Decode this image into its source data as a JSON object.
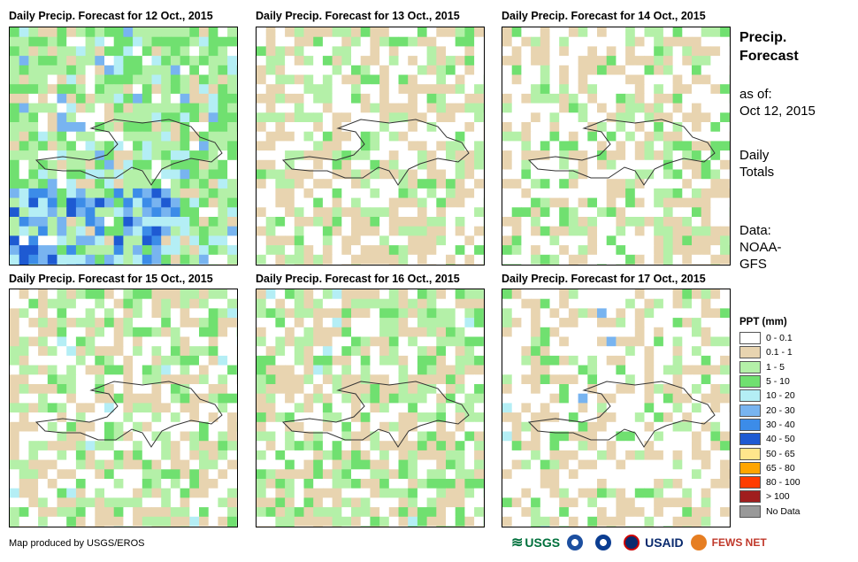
{
  "panels": [
    {
      "title": "Daily Precip. Forecast for 12 Oct., 2015"
    },
    {
      "title": "Daily Precip. Forecast for 13 Oct., 2015"
    },
    {
      "title": "Daily Precip. Forecast for 14 Oct., 2015"
    },
    {
      "title": "Daily Precip. Forecast for 15 Oct., 2015"
    },
    {
      "title": "Daily Precip. Forecast for 16 Oct., 2015"
    },
    {
      "title": "Daily Precip. Forecast for 17 Oct., 2015"
    }
  ],
  "side": {
    "title_line1": "Precip.",
    "title_line2": "Forecast",
    "asof_label": "as of:",
    "asof_date": "Oct 12, 2015",
    "totals_line1": "Daily",
    "totals_line2": "Totals",
    "data_label": "Data:",
    "data_line1": "NOAA-",
    "data_line2": "GFS"
  },
  "legend": {
    "title": "PPT (mm)",
    "items": [
      {
        "label": "0 - 0.1",
        "color": "#ffffff"
      },
      {
        "label": "0.1 - 1",
        "color": "#e8d4b0"
      },
      {
        "label": "1 - 5",
        "color": "#b4f0a8"
      },
      {
        "label": "5 - 10",
        "color": "#70e070"
      },
      {
        "label": "10 - 20",
        "color": "#b4eef5"
      },
      {
        "label": "20 - 30",
        "color": "#78b4f0"
      },
      {
        "label": "30 - 40",
        "color": "#3c8ce8"
      },
      {
        "label": "40 - 50",
        "color": "#1e5ad2"
      },
      {
        "label": "50 - 65",
        "color": "#ffe68c"
      },
      {
        "label": "65 - 80",
        "color": "#ffa500"
      },
      {
        "label": "80 - 100",
        "color": "#ff3c00"
      },
      {
        "label": "> 100",
        "color": "#a01e1e"
      },
      {
        "label": "No Data",
        "color": "#999999"
      }
    ]
  },
  "credit": "Map produced by USGS/EROS",
  "logos": {
    "usgs": "USGS",
    "usaid": "USAID",
    "fewsnet": "FEWS NET"
  },
  "colors": {
    "usgs": "#00703c",
    "noaa": "#1c4fa0",
    "usaid": "#0a2a6e",
    "fewsnet": "#c0392b"
  }
}
